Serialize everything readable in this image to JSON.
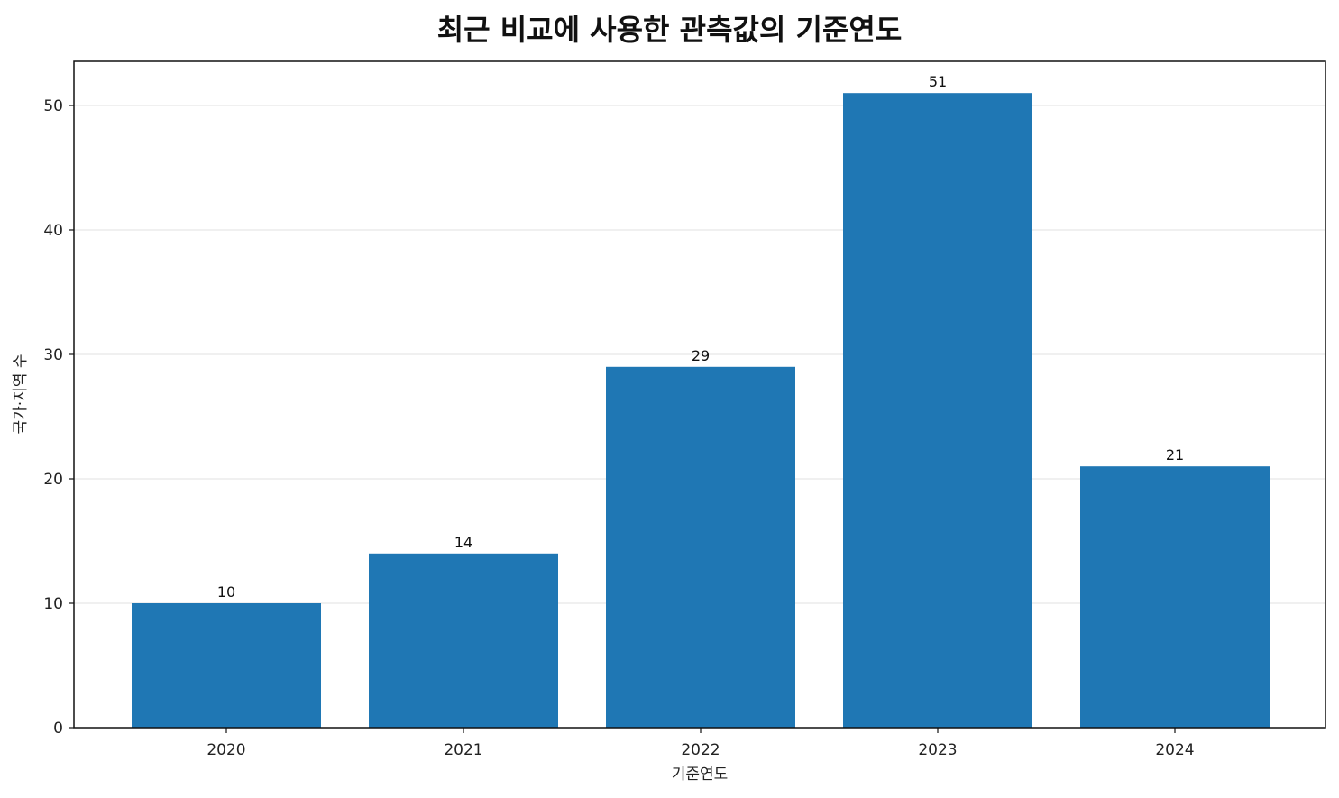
{
  "chart_data": {
    "type": "bar",
    "title": "최근 비교에 사용한 관측값의 기준연도",
    "xlabel": "기준연도",
    "ylabel": "국가·지역 수",
    "categories": [
      "2020",
      "2021",
      "2022",
      "2023",
      "2024"
    ],
    "values": [
      10,
      14,
      29,
      51,
      21
    ],
    "data_labels": [
      "10",
      "14",
      "29",
      "51",
      "21"
    ],
    "ylim": [
      0,
      53.55
    ],
    "yticks": [
      0,
      10,
      20,
      30,
      40,
      50
    ],
    "grid": "y",
    "bar_color": "#1f77b4",
    "grid_color": "#e8e8e8",
    "legend": "none"
  }
}
